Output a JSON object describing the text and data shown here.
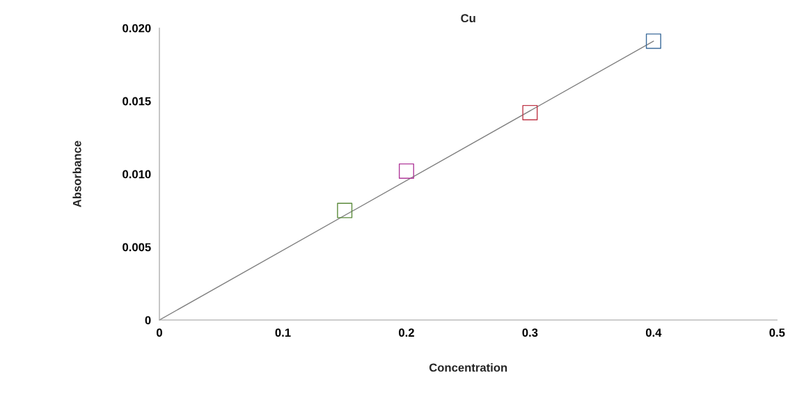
{
  "chart_data": {
    "type": "scatter",
    "title": "Cu",
    "xlabel": "Concentration",
    "ylabel": "Absorbance",
    "xlim": [
      0,
      0.5
    ],
    "ylim": [
      0,
      0.02
    ],
    "xticks": [
      0,
      0.1,
      0.2,
      0.3,
      0.4,
      0.5
    ],
    "yticks": [
      0,
      0.005,
      {
        "value": 0.01,
        "label": "0.010"
      },
      0.015,
      {
        "value": 0.02,
        "label": "0.020"
      }
    ],
    "marker": "square",
    "grid": false,
    "legend": false,
    "series": [
      {
        "type": "line",
        "x": [
          0,
          0.4
        ],
        "values": [
          0,
          0.0191
        ],
        "color": "#808080",
        "marker": "none"
      },
      {
        "x": [
          0.15,
          0.2,
          0.3,
          0.4
        ],
        "values": [
          0.0075,
          0.0102,
          0.0142,
          0.0191
        ],
        "colors": [
          "#5a8a3a",
          "#b03a9a",
          "#c03a4a",
          "#3a6a9a"
        ]
      }
    ]
  }
}
